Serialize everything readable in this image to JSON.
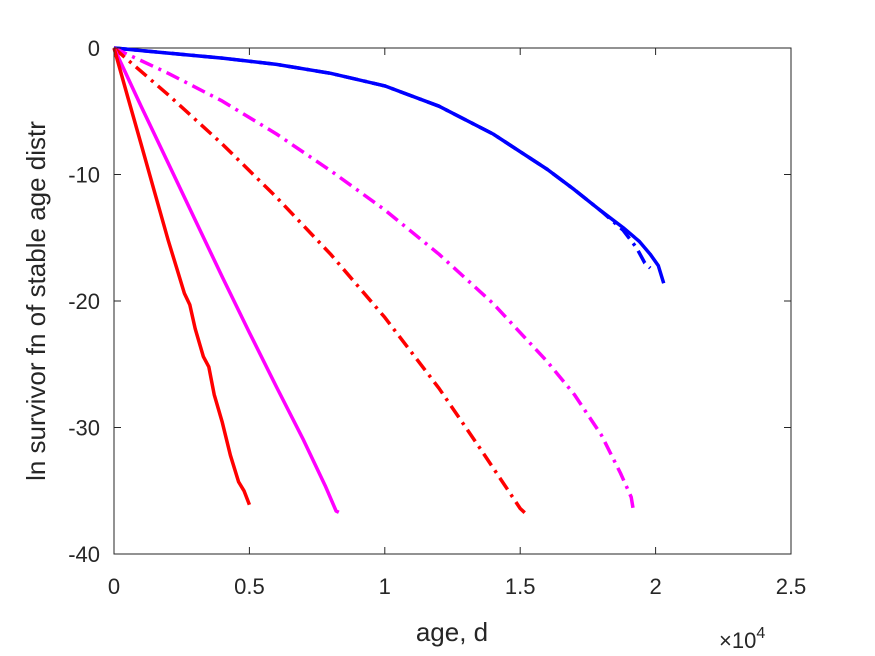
{
  "chart_data": {
    "type": "line",
    "xlabel": "age, d",
    "ylabel": "ln survivor fn of stable age distr",
    "xlim": [
      0,
      25000
    ],
    "ylim": [
      -40,
      0
    ],
    "x_tick_labels": [
      "0",
      "0.5",
      "1",
      "1.5",
      "2",
      "2.5"
    ],
    "x_tick_values": [
      0,
      5000,
      10000,
      15000,
      20000,
      25000
    ],
    "x_exponent_label": "×10",
    "x_exponent_power": "4",
    "y_tick_labels": [
      "0",
      "-10",
      "-20",
      "-30",
      "-40"
    ],
    "y_tick_values": [
      0,
      -10,
      -20,
      -30,
      -40
    ],
    "grid": false,
    "series": [
      {
        "color": "#0000ff",
        "style": "solid",
        "x": [
          0,
          2000,
          4000,
          6000,
          8000,
          10000,
          12000,
          14000,
          16000,
          17000,
          18000,
          18800,
          19400,
          19800,
          20100,
          20300
        ],
        "y": [
          0,
          -0.4,
          -0.8,
          -1.3,
          -2.0,
          -3.0,
          -4.6,
          -6.8,
          -9.6,
          -11.2,
          -12.9,
          -14.2,
          -15.3,
          -16.3,
          -17.2,
          -18.6
        ]
      },
      {
        "color": "#0000ff",
        "style": "dashdot",
        "x": [
          0,
          2000,
          4000,
          6000,
          8000,
          10000,
          12000,
          14000,
          16000,
          17000,
          18000,
          18800,
          19300,
          19600,
          19800
        ],
        "y": [
          0,
          -0.4,
          -0.8,
          -1.3,
          -2.0,
          -3.0,
          -4.6,
          -6.8,
          -9.6,
          -11.2,
          -12.9,
          -14.4,
          -15.8,
          -17.0,
          -17.4
        ]
      },
      {
        "color": "#ff00ff",
        "style": "dashdot",
        "x": [
          0,
          2000,
          4000,
          6000,
          8000,
          10000,
          12000,
          14000,
          16000,
          17000,
          18000,
          18700,
          19100,
          19200
        ],
        "y": [
          0,
          -2.0,
          -4.2,
          -6.8,
          -9.7,
          -12.8,
          -16.3,
          -20.2,
          -24.8,
          -27.4,
          -30.6,
          -33.6,
          -35.5,
          -36.8
        ]
      },
      {
        "color": "#ff0000",
        "style": "dashdot",
        "x": [
          0,
          2000,
          4000,
          6000,
          8000,
          10000,
          12000,
          13500,
          14500,
          15000,
          15200
        ],
        "y": [
          0,
          -3.7,
          -7.6,
          -11.8,
          -16.3,
          -21.3,
          -26.9,
          -31.6,
          -34.8,
          -36.4,
          -36.8
        ]
      },
      {
        "color": "#ff00ff",
        "style": "solid",
        "x": [
          0,
          1000,
          2000,
          3000,
          4000,
          5000,
          6000,
          7000,
          7800,
          8200,
          8300
        ],
        "y": [
          0,
          -4.6,
          -9.1,
          -13.6,
          -18.1,
          -22.5,
          -26.8,
          -31.0,
          -34.6,
          -36.6,
          -36.7
        ]
      },
      {
        "color": "#ff0000",
        "style": "solid",
        "x": [
          0,
          500,
          1000,
          1500,
          2000,
          2300,
          2600,
          2800,
          3000,
          3300,
          3500,
          3700,
          4000,
          4300,
          4600,
          4800,
          5000
        ],
        "y": [
          0,
          -3.8,
          -7.6,
          -11.4,
          -15.2,
          -17.3,
          -19.4,
          -20.3,
          -22.2,
          -24.4,
          -25.2,
          -27.4,
          -29.6,
          -32.2,
          -34.3,
          -35.0,
          -36.1
        ]
      }
    ]
  }
}
